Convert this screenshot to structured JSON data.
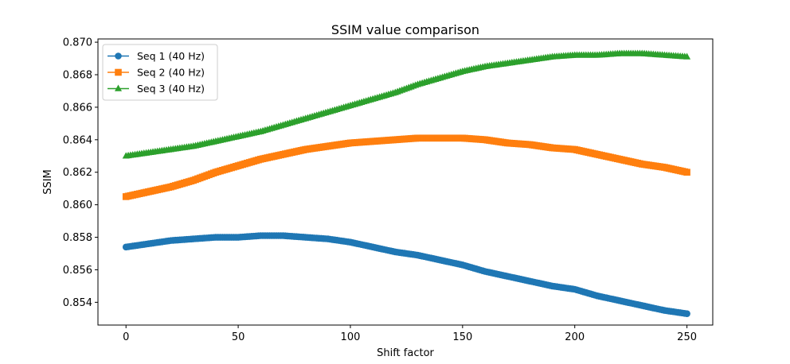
{
  "chart_data": {
    "type": "line",
    "title": "SSIM value comparison",
    "xlabel": "Shift factor",
    "ylabel": "SSIM",
    "xlim": [
      -12.5,
      261.5
    ],
    "ylim": [
      0.8526,
      0.8702
    ],
    "xticks": [
      0,
      50,
      100,
      150,
      200,
      250
    ],
    "xtick_labels": [
      "0",
      "50",
      "100",
      "150",
      "200",
      "250"
    ],
    "yticks": [
      0.854,
      0.856,
      0.858,
      0.86,
      0.862,
      0.864,
      0.866,
      0.868,
      0.87
    ],
    "ytick_labels": [
      "0.854",
      "0.856",
      "0.858",
      "0.860",
      "0.862",
      "0.864",
      "0.866",
      "0.868",
      "0.870"
    ],
    "grid": false,
    "legend_position": "upper-left",
    "series": [
      {
        "name": "Seq 1 (40 Hz)",
        "color": "#1f77b4",
        "marker": "circle",
        "x": [
          0,
          10,
          20,
          30,
          40,
          50,
          60,
          70,
          80,
          90,
          100,
          110,
          120,
          130,
          140,
          150,
          160,
          170,
          180,
          190,
          200,
          210,
          220,
          230,
          240,
          250
        ],
        "y": [
          0.8574,
          0.8576,
          0.8578,
          0.8579,
          0.858,
          0.858,
          0.8581,
          0.8581,
          0.858,
          0.8579,
          0.8577,
          0.8574,
          0.8571,
          0.8569,
          0.8566,
          0.8563,
          0.8559,
          0.8556,
          0.8553,
          0.855,
          0.8548,
          0.8544,
          0.8541,
          0.8538,
          0.8535,
          0.8533
        ]
      },
      {
        "name": "Seq 2 (40 Hz)",
        "color": "#ff7f0e",
        "marker": "square",
        "x": [
          0,
          10,
          20,
          30,
          40,
          50,
          60,
          70,
          80,
          90,
          100,
          110,
          120,
          130,
          140,
          150,
          160,
          170,
          180,
          190,
          200,
          210,
          220,
          230,
          240,
          250
        ],
        "y": [
          0.8605,
          0.8608,
          0.8611,
          0.8615,
          0.862,
          0.8624,
          0.8628,
          0.8631,
          0.8634,
          0.8636,
          0.8638,
          0.8639,
          0.864,
          0.8641,
          0.8641,
          0.8641,
          0.864,
          0.8638,
          0.8637,
          0.8635,
          0.8634,
          0.8631,
          0.8628,
          0.8625,
          0.8623,
          0.862
        ]
      },
      {
        "name": "Seq 3 (40 Hz)",
        "color": "#2ca02c",
        "marker": "triangle",
        "x": [
          0,
          10,
          20,
          30,
          40,
          50,
          60,
          70,
          80,
          90,
          100,
          110,
          120,
          130,
          140,
          150,
          160,
          170,
          180,
          190,
          200,
          210,
          220,
          230,
          240,
          250
        ],
        "y": [
          0.863,
          0.8632,
          0.8634,
          0.8636,
          0.8639,
          0.8642,
          0.8645,
          0.8649,
          0.8653,
          0.8657,
          0.8661,
          0.8665,
          0.8669,
          0.8674,
          0.8678,
          0.8682,
          0.8685,
          0.8687,
          0.8689,
          0.8691,
          0.8692,
          0.8692,
          0.8693,
          0.8693,
          0.8692,
          0.8691
        ]
      }
    ]
  }
}
